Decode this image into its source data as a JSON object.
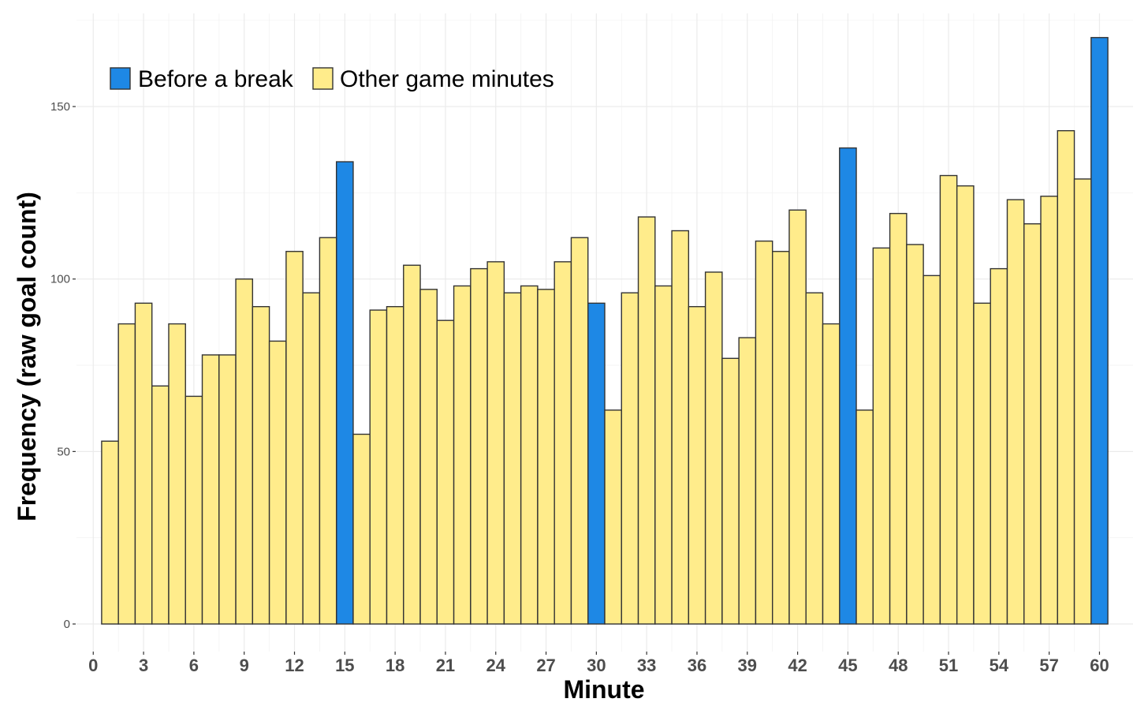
{
  "chart_data": {
    "type": "bar",
    "title": "",
    "xlabel": "Minute",
    "ylabel": "Frequency (raw goal count)",
    "xlim": [
      -1,
      62
    ],
    "ylim": [
      -8,
      177
    ],
    "x_ticks": [
      0,
      3,
      6,
      9,
      12,
      15,
      18,
      21,
      24,
      27,
      30,
      33,
      36,
      39,
      42,
      45,
      48,
      51,
      54,
      57,
      60
    ],
    "x_tick_labels": [
      "0",
      "3",
      "6",
      "9",
      "12",
      "15",
      "18",
      "21",
      "24",
      "27",
      "30",
      "33",
      "36",
      "39",
      "42",
      "45",
      "48",
      "51",
      "54",
      "57",
      "60"
    ],
    "y_ticks": [
      0,
      50,
      100,
      150
    ],
    "y_tick_labels": [
      "0",
      "50",
      "100",
      "150"
    ],
    "grid": true,
    "legend_position": "top-left",
    "series": [
      {
        "name": "Before a break",
        "color": "#1e88e5",
        "minutes": [
          15,
          30,
          45,
          60
        ],
        "values": [
          134,
          93,
          138,
          170
        ]
      },
      {
        "name": "Other game minutes",
        "color": "#ffec8b",
        "minutes": [
          1,
          2,
          3,
          4,
          5,
          6,
          7,
          8,
          9,
          10,
          11,
          12,
          13,
          14,
          16,
          17,
          18,
          19,
          20,
          21,
          22,
          23,
          24,
          25,
          26,
          27,
          28,
          29,
          31,
          32,
          33,
          34,
          35,
          36,
          37,
          38,
          39,
          40,
          41,
          42,
          43,
          44,
          46,
          47,
          48,
          49,
          50,
          51,
          52,
          53,
          54,
          55,
          56,
          57,
          58,
          59
        ],
        "values": [
          53,
          87,
          93,
          69,
          87,
          66,
          78,
          78,
          100,
          92,
          82,
          108,
          96,
          112,
          55,
          91,
          92,
          104,
          97,
          88,
          98,
          103,
          105,
          96,
          98,
          97,
          105,
          112,
          62,
          96,
          118,
          98,
          114,
          92,
          102,
          77,
          83,
          111,
          108,
          120,
          96,
          87,
          62,
          109,
          119,
          110,
          101,
          130,
          127,
          93,
          103,
          123,
          116,
          124,
          143,
          129
        ]
      }
    ],
    "legend": [
      {
        "label": "Before a break",
        "color": "#1e88e5"
      },
      {
        "label": "Other game minutes",
        "color": "#ffec8b"
      }
    ]
  }
}
